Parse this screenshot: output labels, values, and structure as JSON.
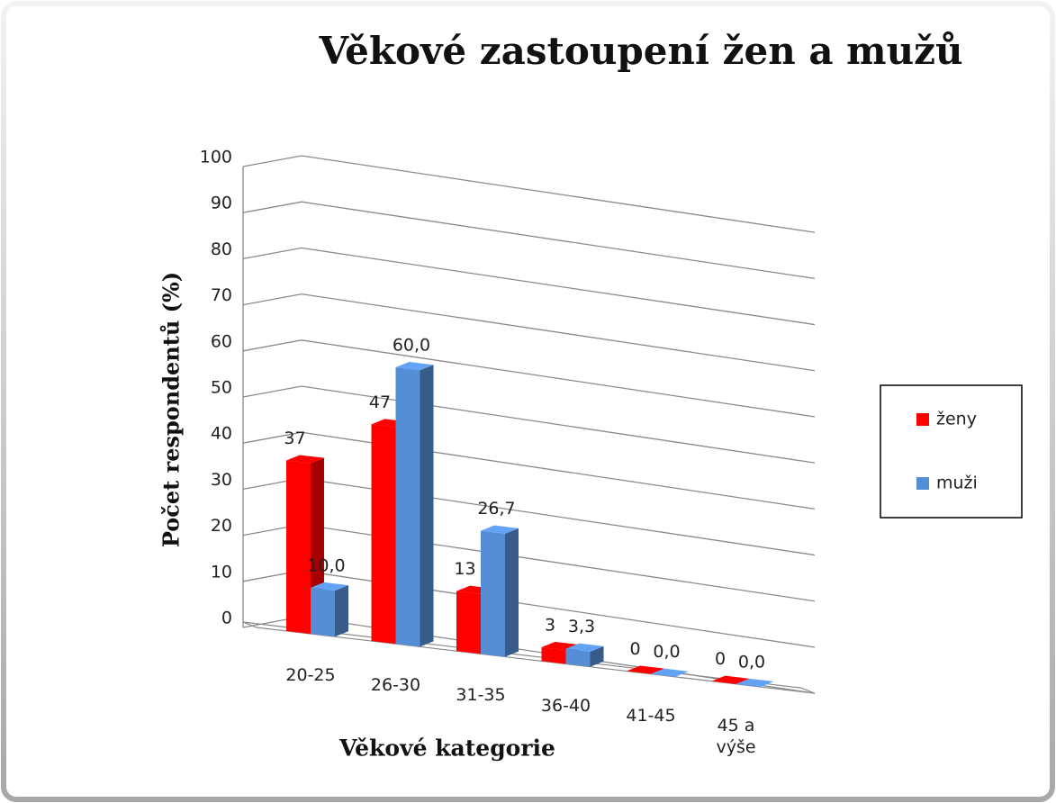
{
  "chart_data": {
    "type": "bar3d",
    "title": "Věkové zastoupení žen a mužů",
    "y_label": "Počet  respondentů  (%)",
    "x_label": "Věkové kategorie",
    "categories": [
      "20-25",
      "26-30",
      "31-35",
      "36-40",
      "41-45",
      "45 a výše"
    ],
    "series": [
      {
        "name": "ženy",
        "color": "#ff0000",
        "values": [
          37,
          47,
          13,
          3,
          0,
          0
        ]
      },
      {
        "name": "muži",
        "color": "#558ed5",
        "values": [
          10.0,
          60.0,
          26.7,
          3.3,
          0.0,
          0.0
        ],
        "value_labels": [
          "10,0",
          "60,0",
          "26,7",
          "3,3",
          "0,0",
          "0,0"
        ]
      }
    ],
    "ylim": [
      0,
      100
    ],
    "yticks": [
      0,
      10,
      20,
      30,
      40,
      50,
      60,
      70,
      80,
      90,
      100
    ],
    "grid": true,
    "legend": "right"
  }
}
